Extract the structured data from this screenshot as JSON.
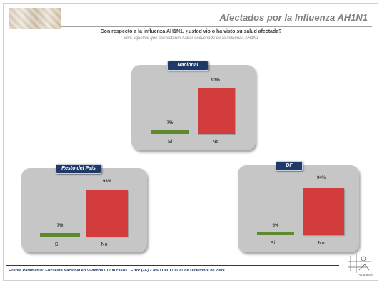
{
  "header": {
    "title": "Afectados por la Influenza AH1N1"
  },
  "question": "Con respecto a la influenza AH1N1, ¿usted vio o ha visto su salud afectada?",
  "subquestion": "Sólo aquellos que contestaron haber escuchado de la influenza AH1N1",
  "chart_data": [
    {
      "type": "bar",
      "title": "Nacional",
      "categories": [
        "Sí",
        "No"
      ],
      "values": [
        7,
        93
      ],
      "value_labels": [
        "7%",
        "93%"
      ],
      "colors": [
        "#5d8a2e",
        "#d23c3c"
      ],
      "ylim": [
        0,
        100
      ]
    },
    {
      "type": "bar",
      "title": "Resto del País",
      "categories": [
        "Sí",
        "No"
      ],
      "values": [
        7,
        93
      ],
      "value_labels": [
        "7%",
        "93%"
      ],
      "colors": [
        "#5d8a2e",
        "#d23c3c"
      ],
      "ylim": [
        0,
        100
      ]
    },
    {
      "type": "bar",
      "title": "DF",
      "categories": [
        "Sí",
        "No"
      ],
      "values": [
        6,
        94
      ],
      "value_labels": [
        "6%",
        "94%"
      ],
      "colors": [
        "#5d8a2e",
        "#d23c3c"
      ],
      "ylim": [
        0,
        100
      ]
    }
  ],
  "footer": {
    "source": "Fuente Parametría: Encuesta Nacional en Vivienda / 1200 casos / Error (+/-) 2.8% / Del 17 al 21 de Diciembre de 2009.",
    "logo_text": "Parametría"
  }
}
